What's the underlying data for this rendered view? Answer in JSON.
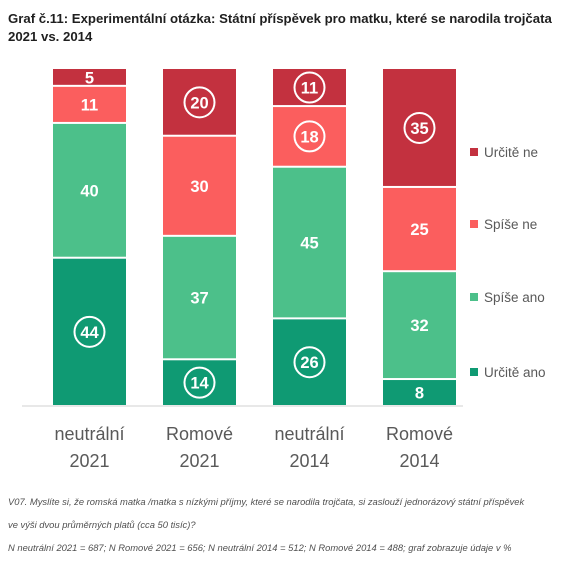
{
  "chart_data": {
    "type": "bar",
    "stacked": true,
    "title": "Graf č.11: Experimentální otázka: Státní příspěvek pro matku, které se narodila trojčata 2021 vs. 2014",
    "categories": [
      [
        "neutrální",
        "2021"
      ],
      [
        "Romové",
        "2021"
      ],
      [
        "neutrální",
        "2014"
      ],
      [
        "Romové",
        "2014"
      ]
    ],
    "series": [
      {
        "name": "Určitě ano",
        "color": "#0f9a73",
        "values": [
          44,
          14,
          26,
          8
        ]
      },
      {
        "name": "Spíše ano",
        "color": "#4cc08a",
        "values": [
          40,
          37,
          45,
          32
        ]
      },
      {
        "name": "Spíše ne",
        "color": "#fb5e5e",
        "values": [
          11,
          30,
          18,
          25
        ]
      },
      {
        "name": "Určitě ne",
        "color": "#c3313f",
        "values": [
          5,
          20,
          11,
          35
        ]
      }
    ],
    "circled": [
      {
        "category": 0,
        "series": 0
      },
      {
        "category": 1,
        "series": 0
      },
      {
        "category": 1,
        "series": 3
      },
      {
        "category": 2,
        "series": 0
      },
      {
        "category": 2,
        "series": 2
      },
      {
        "category": 2,
        "series": 3
      },
      {
        "category": 3,
        "series": 3
      }
    ],
    "ylim": [
      0,
      100
    ],
    "legend_position": "right",
    "legend_order": [
      "Určitě ne",
      "Spíše ne",
      "Spíše ano",
      "Určitě ano"
    ],
    "grid": false
  },
  "footnote": {
    "question_line1": "V07. Myslíte si, že romská matka /matka s nízkými příjmy, které se narodila trojčata, si zaslouží jednorázový státní příspěvek",
    "question_line2": "ve výši dvou průměrných platů (cca 50 tisíc)?",
    "sample": "N neutrální 2021 = 687; N Romové 2021 = 656; N neutrální 2014 = 512; N Romové 2014 = 488; graf zobrazuje údaje v %"
  }
}
